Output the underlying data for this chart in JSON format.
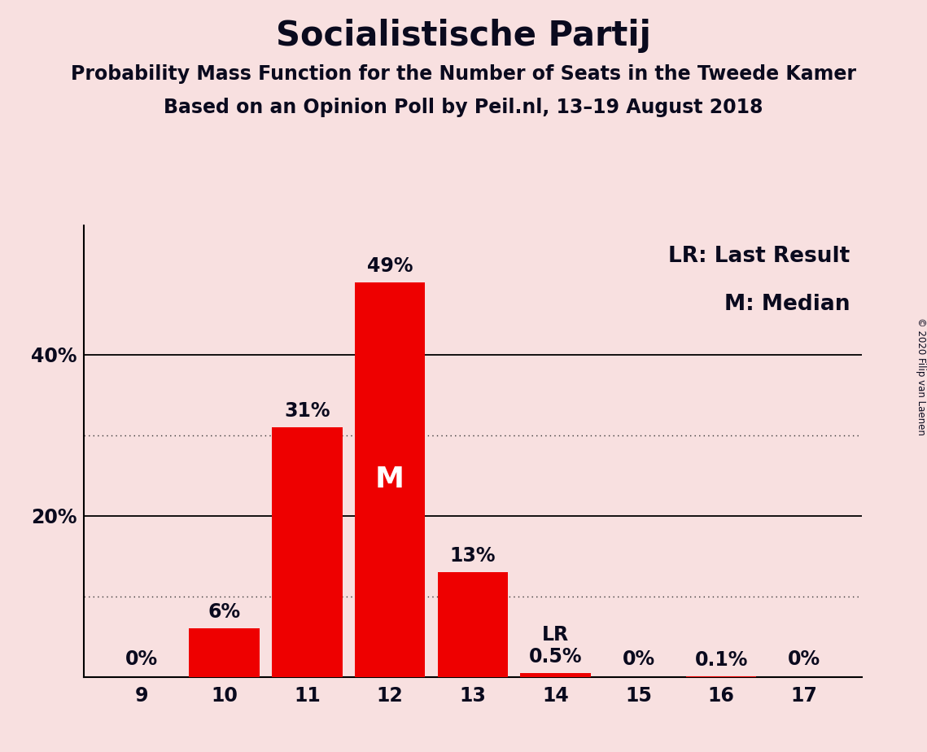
{
  "title": "Socialistische Partij",
  "subtitle1": "Probability Mass Function for the Number of Seats in the Tweede Kamer",
  "subtitle2": "Based on an Opinion Poll by Peil.nl, 13–19 August 2018",
  "copyright": "© 2020 Filip van Laenen",
  "categories": [
    9,
    10,
    11,
    12,
    13,
    14,
    15,
    16,
    17
  ],
  "values": [
    0,
    6,
    31,
    49,
    13,
    0.5,
    0,
    0.1,
    0
  ],
  "labels": [
    "0%",
    "6%",
    "31%",
    "49%",
    "13%",
    "0.5%",
    "0%",
    "0.1%",
    "0%"
  ],
  "bar_color": "#ee0000",
  "background_color": "#f8e0e0",
  "median_seat": 12,
  "lr_seat": 14,
  "legend_lr": "LR: Last Result",
  "legend_m": "M: Median",
  "ylim": [
    0,
    56
  ],
  "dotted_lines": [
    10,
    30
  ],
  "solid_lines": [
    20,
    40
  ],
  "title_fontsize": 30,
  "subtitle_fontsize": 17,
  "label_fontsize": 17,
  "tick_fontsize": 17,
  "legend_fontsize": 19,
  "median_label_fontsize": 26
}
